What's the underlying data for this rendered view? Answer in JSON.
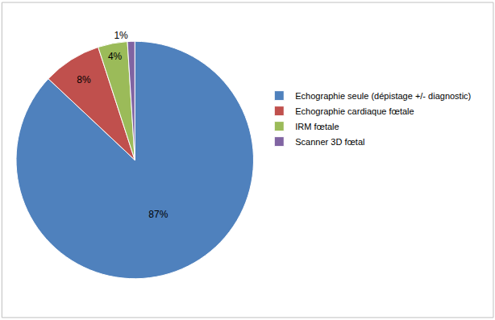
{
  "chart_data": {
    "type": "pie",
    "categories": [
      "Echographie seule (dépistage +/- diagnostic)",
      "Echographie cardiaque fœtale",
      "IRM fœtale",
      "Scanner 3D fœtal"
    ],
    "values": [
      87,
      8,
      4,
      1
    ],
    "value_labels": [
      "87%",
      "8%",
      "4%",
      "1%"
    ],
    "colors": [
      "#4f81bd",
      "#c0504d",
      "#9bbb59",
      "#8064a2"
    ],
    "data_labels": true,
    "legend": "right"
  }
}
